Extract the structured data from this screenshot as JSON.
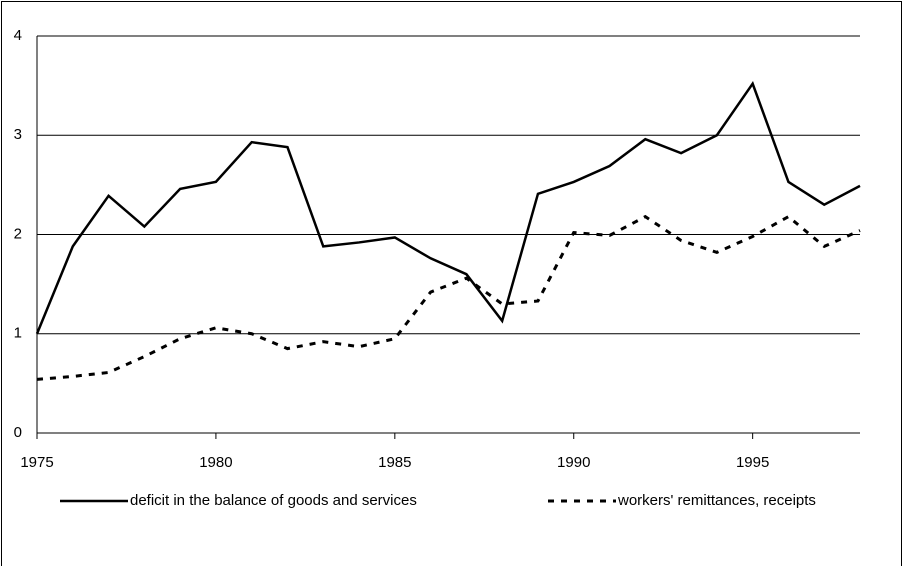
{
  "chart_data": {
    "type": "line",
    "x": [
      1975,
      1976,
      1977,
      1978,
      1979,
      1980,
      1981,
      1982,
      1983,
      1984,
      1985,
      1986,
      1987,
      1988,
      1989,
      1990,
      1991,
      1992,
      1993,
      1994,
      1995,
      1996,
      1997,
      1998
    ],
    "series": [
      {
        "name": "deficit in the balance of goods and services",
        "color": "#000000",
        "dash": false,
        "values": [
          1.0,
          1.88,
          2.39,
          2.08,
          2.46,
          2.53,
          2.93,
          2.88,
          1.88,
          1.92,
          1.97,
          1.76,
          1.6,
          1.13,
          2.41,
          2.53,
          2.69,
          2.96,
          2.82,
          3.0,
          3.52,
          2.53,
          2.3,
          2.49
        ]
      },
      {
        "name": "workers' remittances, receipts",
        "color": "#000000",
        "dash": true,
        "values": [
          0.54,
          0.57,
          0.61,
          0.77,
          0.95,
          1.06,
          1.0,
          0.85,
          0.92,
          0.87,
          0.95,
          1.42,
          1.56,
          1.3,
          1.33,
          2.02,
          1.99,
          2.18,
          1.94,
          1.82,
          1.98,
          2.18,
          1.88,
          2.04
        ]
      }
    ],
    "xlim": [
      1975,
      1998
    ],
    "xticks": [
      1975,
      1980,
      1985,
      1990,
      1995
    ],
    "ylim": [
      0,
      4
    ],
    "yticks": [
      0,
      1,
      2,
      3,
      4
    ],
    "grid": true,
    "legend": "bottom"
  }
}
